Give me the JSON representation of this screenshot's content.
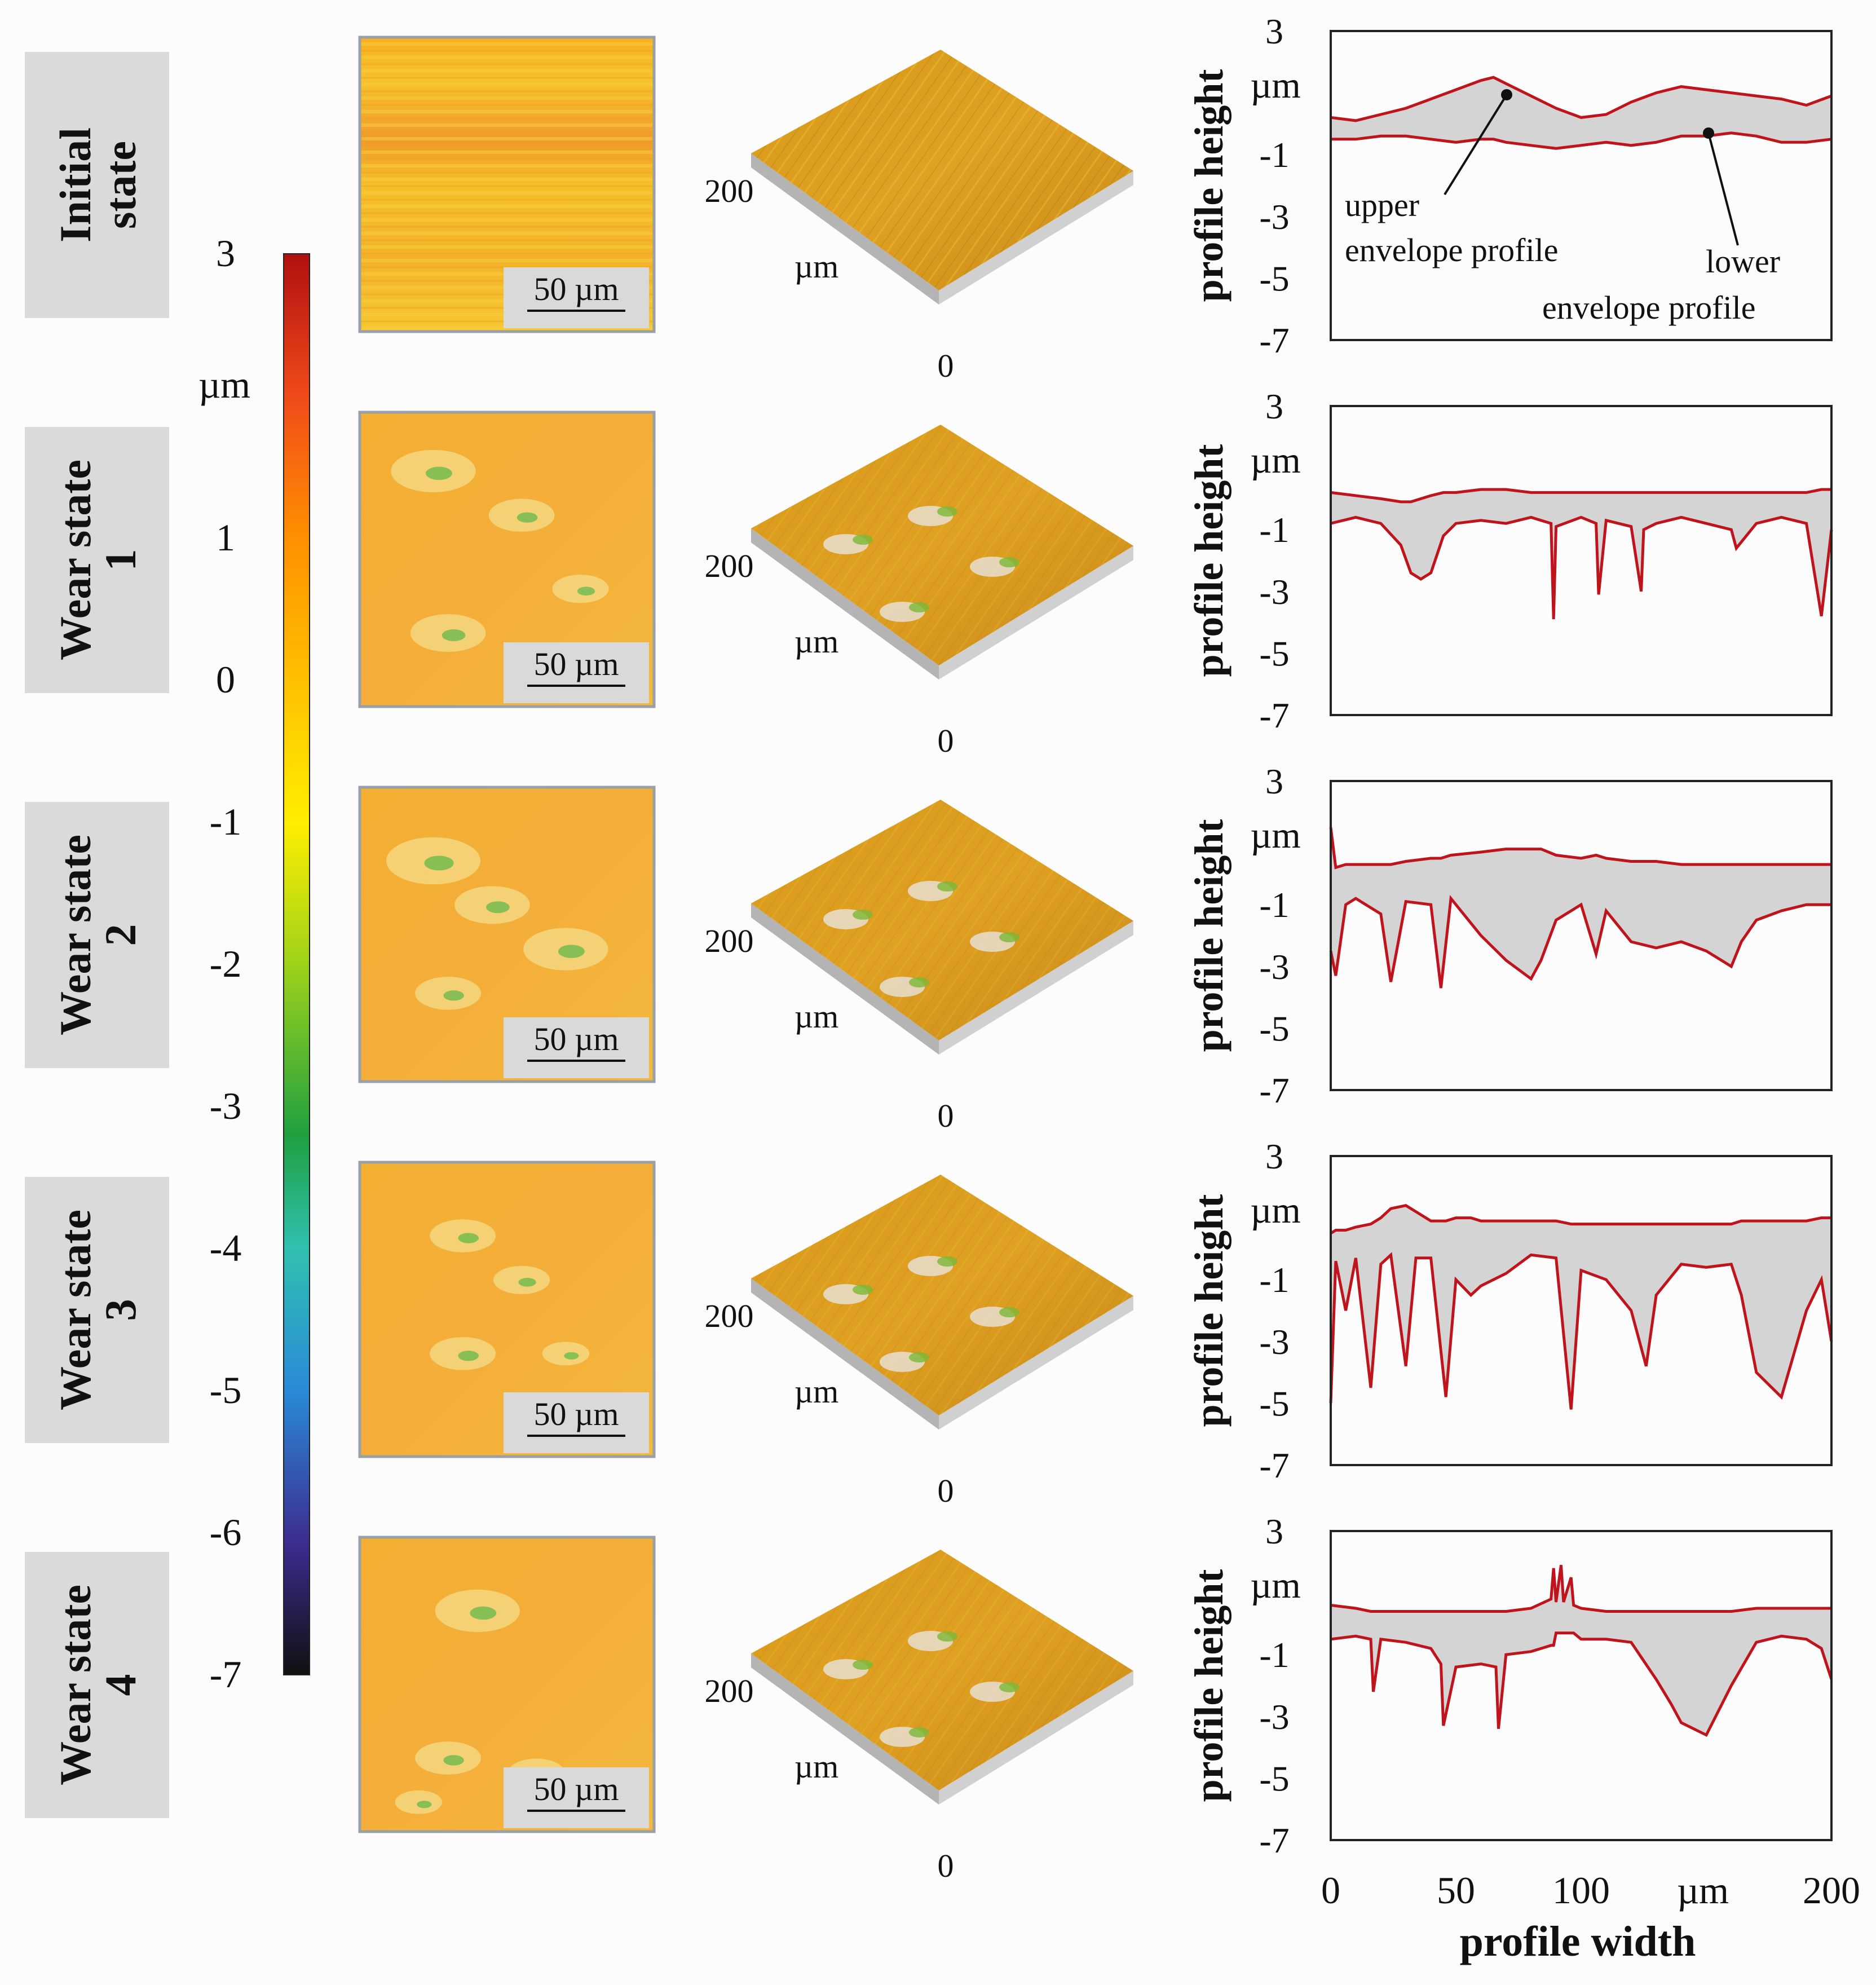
{
  "colorbar": {
    "unit": "µm",
    "ticks": [
      "3",
      "1",
      "0",
      "-1",
      "-2",
      "-3",
      "-4",
      "-5",
      "-6",
      "-7"
    ],
    "tick_values": [
      3,
      1,
      0,
      -1,
      -2,
      -3,
      -4,
      -5,
      -6,
      -7
    ],
    "range": [
      -7,
      3
    ],
    "colors": [
      "#1a1a1a",
      "#3c2a8c",
      "#2aa0d8",
      "#30c0a0",
      "#1aa03a",
      "#9ed21a",
      "#ffee00",
      "#ffc000",
      "#ff8a00",
      "#f03a1a",
      "#b01010"
    ]
  },
  "rows": [
    {
      "label_line1": "Initial",
      "label_line2": "state",
      "scale_text": "50 µm",
      "axis_200": "200",
      "axis_um": "µm",
      "axis_0": "0"
    },
    {
      "label_line1": "Wear state",
      "label_line2": "1",
      "scale_text": "50 µm",
      "axis_200": "200",
      "axis_um": "µm",
      "axis_0": "0"
    },
    {
      "label_line1": "Wear state",
      "label_line2": "2",
      "scale_text": "50 µm",
      "axis_200": "200",
      "axis_um": "µm",
      "axis_0": "0"
    },
    {
      "label_line1": "Wear state",
      "label_line2": "3",
      "scale_text": "50 µm",
      "axis_200": "200",
      "axis_um": "µm",
      "axis_0": "0"
    },
    {
      "label_line1": "Wear state",
      "label_line2": "4",
      "scale_text": "50 µm",
      "axis_200": "200",
      "axis_um": "µm",
      "axis_0": "0"
    }
  ],
  "annotations": {
    "upper_1": "upper",
    "upper_2": "envelope profile",
    "lower_1": "lower",
    "lower_2": "envelope profile"
  },
  "chart_data": {
    "type": "line",
    "title": "",
    "xlabel": "profile width",
    "ylabel": "profile height",
    "x_unit": "µm",
    "y_unit": "µm",
    "xlim": [
      0,
      200
    ],
    "ylim": [
      -7,
      3
    ],
    "x_ticks": [
      0,
      50,
      100,
      200
    ],
    "x_tick_labels": [
      "0",
      "50",
      "100",
      "200"
    ],
    "y_ticks": [
      3,
      -1,
      -3,
      -5,
      -7
    ],
    "y_tick_labels": [
      "3",
      "-1",
      "-3",
      "-5",
      "-7"
    ],
    "series_color": "#c0141c",
    "fill_color": "#d4d4d4",
    "panels": [
      {
        "name": "Initial state",
        "x": [
          0,
          10,
          20,
          30,
          40,
          50,
          60,
          65,
          70,
          80,
          90,
          100,
          110,
          120,
          130,
          140,
          150,
          160,
          170,
          180,
          190,
          200
        ],
        "upper": [
          0.2,
          0.1,
          0.3,
          0.5,
          0.8,
          1.1,
          1.4,
          1.5,
          1.3,
          0.9,
          0.5,
          0.2,
          0.3,
          0.7,
          1.0,
          1.2,
          1.1,
          1.0,
          0.9,
          0.8,
          0.6,
          0.9
        ],
        "lower": [
          -0.5,
          -0.5,
          -0.4,
          -0.4,
          -0.5,
          -0.6,
          -0.5,
          -0.5,
          -0.6,
          -0.7,
          -0.8,
          -0.7,
          -0.6,
          -0.7,
          -0.6,
          -0.4,
          -0.4,
          -0.3,
          -0.4,
          -0.6,
          -0.6,
          -0.5
        ]
      },
      {
        "name": "Wear state 1",
        "x": [
          0,
          10,
          20,
          28,
          32,
          36,
          40,
          45,
          50,
          60,
          70,
          80,
          88,
          89,
          90,
          100,
          106,
          107,
          110,
          120,
          124,
          125,
          130,
          140,
          150,
          160,
          162,
          170,
          180,
          190,
          196,
          200
        ],
        "upper": [
          0.2,
          0.1,
          0.0,
          -0.1,
          -0.1,
          0.0,
          0.1,
          0.2,
          0.2,
          0.3,
          0.3,
          0.2,
          0.2,
          0.2,
          0.2,
          0.2,
          0.2,
          0.2,
          0.2,
          0.2,
          0.2,
          0.2,
          0.2,
          0.2,
          0.2,
          0.2,
          0.2,
          0.2,
          0.2,
          0.2,
          0.3,
          0.3
        ],
        "lower": [
          -0.8,
          -0.6,
          -0.8,
          -1.5,
          -2.4,
          -2.6,
          -2.4,
          -1.2,
          -0.8,
          -0.7,
          -0.8,
          -0.6,
          -0.8,
          -3.9,
          -0.9,
          -0.6,
          -0.8,
          -3.1,
          -0.7,
          -0.9,
          -3.0,
          -1.0,
          -0.8,
          -0.6,
          -0.8,
          -1.0,
          -1.6,
          -0.8,
          -0.6,
          -0.8,
          -3.8,
          -1.0
        ]
      },
      {
        "name": "Wear state 2",
        "x": [
          0,
          2,
          6,
          10,
          20,
          24,
          30,
          40,
          44,
          48,
          60,
          70,
          80,
          84,
          90,
          100,
          106,
          110,
          120,
          130,
          140,
          150,
          160,
          164,
          170,
          180,
          190,
          200
        ],
        "upper": [
          1.5,
          0.2,
          0.3,
          0.3,
          0.3,
          0.3,
          0.4,
          0.5,
          0.5,
          0.6,
          0.7,
          0.8,
          0.8,
          0.8,
          0.6,
          0.5,
          0.6,
          0.5,
          0.4,
          0.4,
          0.3,
          0.3,
          0.3,
          0.3,
          0.3,
          0.3,
          0.3,
          0.3
        ],
        "lower": [
          -2.5,
          -3.3,
          -1.0,
          -0.8,
          -1.3,
          -3.5,
          -0.9,
          -1.0,
          -3.7,
          -0.8,
          -2.0,
          -2.8,
          -3.4,
          -2.8,
          -1.5,
          -1.0,
          -2.6,
          -1.2,
          -2.2,
          -2.4,
          -2.2,
          -2.5,
          -3.0,
          -2.2,
          -1.5,
          -1.2,
          -1.0,
          -1.0
        ]
      },
      {
        "name": "Wear state 3",
        "x": [
          0,
          2,
          6,
          10,
          16,
          20,
          24,
          30,
          34,
          40,
          46,
          50,
          56,
          60,
          70,
          80,
          90,
          96,
          100,
          110,
          120,
          126,
          130,
          140,
          150,
          160,
          164,
          170,
          180,
          190,
          196,
          200
        ],
        "upper": [
          0.5,
          0.6,
          0.6,
          0.7,
          0.8,
          1.0,
          1.3,
          1.4,
          1.2,
          0.9,
          0.9,
          1.0,
          1.0,
          0.9,
          0.9,
          0.9,
          0.9,
          0.8,
          0.8,
          0.8,
          0.8,
          0.8,
          0.8,
          0.8,
          0.8,
          0.8,
          0.9,
          0.9,
          0.9,
          0.9,
          1.0,
          1.0
        ],
        "lower": [
          -5.0,
          -0.4,
          -2.0,
          -0.3,
          -4.5,
          -0.5,
          -0.2,
          -3.8,
          -0.3,
          -0.3,
          -4.8,
          -1.0,
          -1.5,
          -1.2,
          -0.8,
          -0.2,
          -0.3,
          -5.2,
          -0.7,
          -1.0,
          -2.0,
          -3.8,
          -1.5,
          -0.5,
          -0.6,
          -0.5,
          -1.5,
          -4.0,
          -4.8,
          -2.0,
          -1.0,
          -3.0
        ]
      },
      {
        "name": "Wear state 4",
        "x": [
          0,
          10,
          16,
          17,
          20,
          30,
          40,
          44,
          45,
          50,
          60,
          66,
          67,
          70,
          80,
          88,
          89,
          90,
          92,
          93,
          96,
          97,
          100,
          110,
          120,
          130,
          136,
          140,
          150,
          160,
          170,
          180,
          190,
          196,
          200
        ],
        "upper": [
          0.6,
          0.5,
          0.4,
          0.4,
          0.4,
          0.4,
          0.4,
          0.4,
          0.4,
          0.4,
          0.4,
          0.4,
          0.4,
          0.4,
          0.5,
          0.8,
          1.8,
          0.7,
          1.9,
          0.7,
          1.5,
          0.6,
          0.5,
          0.4,
          0.4,
          0.4,
          0.4,
          0.4,
          0.4,
          0.4,
          0.5,
          0.5,
          0.5,
          0.5,
          0.5
        ],
        "lower": [
          -0.5,
          -0.4,
          -0.5,
          -2.2,
          -0.5,
          -0.6,
          -0.8,
          -1.3,
          -3.3,
          -1.4,
          -1.3,
          -1.4,
          -3.4,
          -1.0,
          -0.9,
          -0.7,
          -0.7,
          -0.3,
          -0.3,
          -0.3,
          -0.3,
          -0.3,
          -0.5,
          -0.5,
          -0.6,
          -1.8,
          -2.6,
          -3.2,
          -3.6,
          -2.0,
          -0.6,
          -0.4,
          -0.5,
          -0.8,
          -1.8
        ]
      }
    ]
  }
}
